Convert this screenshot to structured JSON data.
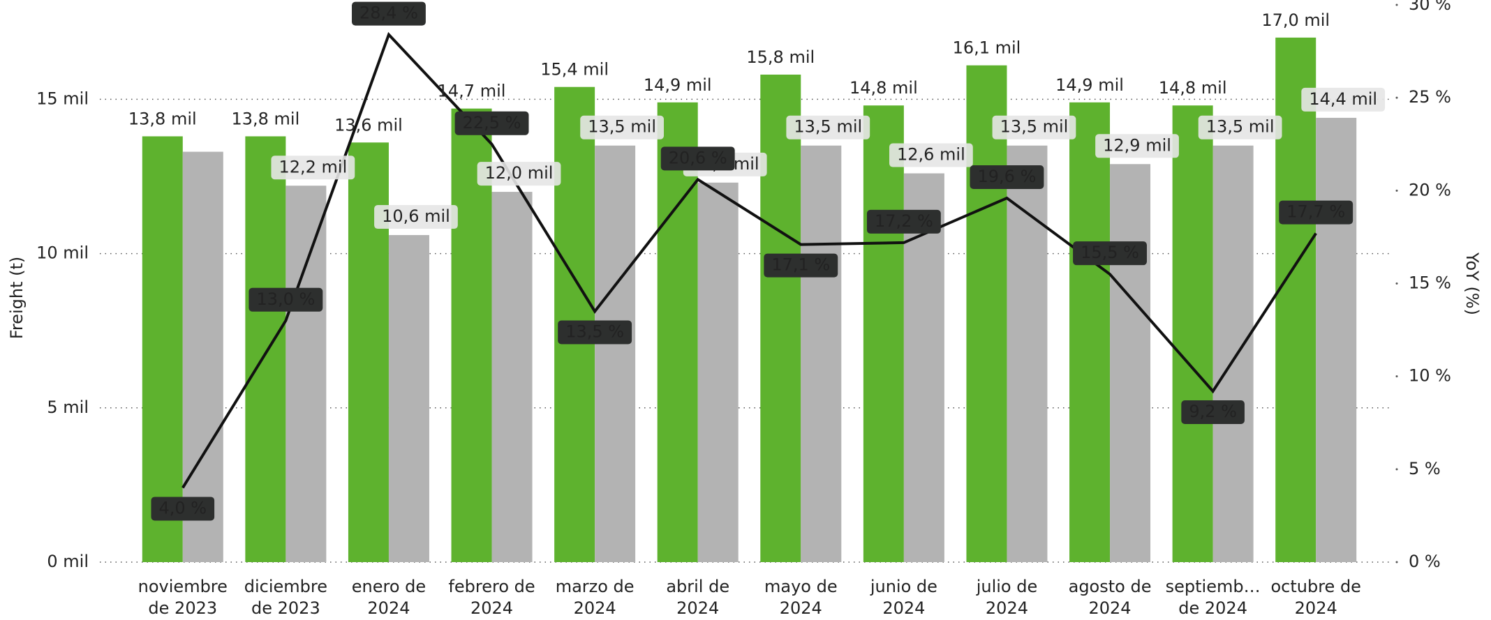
{
  "chart_data": {
    "type": "bar",
    "y_label": "Freight (t)",
    "y2_label": "YoY (%)",
    "categories": [
      [
        "noviembre",
        "de 2023"
      ],
      [
        "diciembre",
        "de 2023"
      ],
      [
        "enero de",
        "2024"
      ],
      [
        "febrero de",
        "2024"
      ],
      [
        "marzo de",
        "2024"
      ],
      [
        "abril de",
        "2024"
      ],
      [
        "mayo de",
        "2024"
      ],
      [
        "junio de",
        "2024"
      ],
      [
        "julio de",
        "2024"
      ],
      [
        "agosto de",
        "2024"
      ],
      [
        "septiemb…",
        "de 2024"
      ],
      [
        "octubre de",
        "2024"
      ]
    ],
    "series": [
      {
        "type": "bar",
        "color": "#5eb22e",
        "values": [
          13800,
          13800,
          13600,
          14700,
          15400,
          14900,
          15800,
          14800,
          16100,
          14900,
          14800,
          17000
        ],
        "value_labels": [
          "13,8 mil",
          "13,8 mil",
          "13,6 mil",
          "14,7 mil",
          "15,4 mil",
          "14,9 mil",
          "15,8 mil",
          "14,8 mil",
          "16,1 mil",
          "14,9 mil",
          "14,8 mil",
          "17,0 mil"
        ]
      },
      {
        "type": "bar",
        "color": "#b3b3b3",
        "values": [
          13300,
          12200,
          10600,
          12000,
          13500,
          12300,
          13500,
          12600,
          13500,
          12900,
          13500,
          14400
        ],
        "value_labels": [
          null,
          "12,2 mil",
          "10,6 mil",
          "12,0 mil",
          "13,5 mil",
          "12,3 mil",
          "13,5 mil",
          "12,6 mil",
          "13,5 mil",
          "12,9 mil",
          "13,5 mil",
          "14,4 mil"
        ]
      },
      {
        "type": "line",
        "axis": "y2",
        "color": "#111111",
        "values": [
          4.0,
          13.0,
          28.4,
          22.5,
          13.5,
          20.6,
          17.1,
          17.2,
          19.6,
          15.5,
          9.2,
          17.7
        ],
        "value_labels": [
          "4,0 %",
          "13,0 %",
          "28,4 %",
          "22,5 %",
          "13,5 %",
          "20,6 %",
          "17,1 %",
          "17,2 %",
          "19,6 %",
          "15,5 %",
          "9,2 %",
          "17,7 %"
        ]
      }
    ],
    "ylim": [
      0,
      18060
    ],
    "yticks": [
      {
        "value": 0,
        "label": "0 mil"
      },
      {
        "value": 5000,
        "label": "5 mil"
      },
      {
        "value": 10000,
        "label": "10 mil"
      },
      {
        "value": 15000,
        "label": "15 mil"
      }
    ],
    "y2lim": [
      0,
      30
    ],
    "y2ticks": [
      {
        "value": 0,
        "label": "0 %"
      },
      {
        "value": 5,
        "label": "5 %"
      },
      {
        "value": 10,
        "label": "10 %"
      },
      {
        "value": 15,
        "label": "15 %"
      },
      {
        "value": 20,
        "label": "20 %"
      },
      {
        "value": 25,
        "label": "25 %"
      },
      {
        "value": 30,
        "label": "30 %"
      }
    ],
    "grid": true
  }
}
